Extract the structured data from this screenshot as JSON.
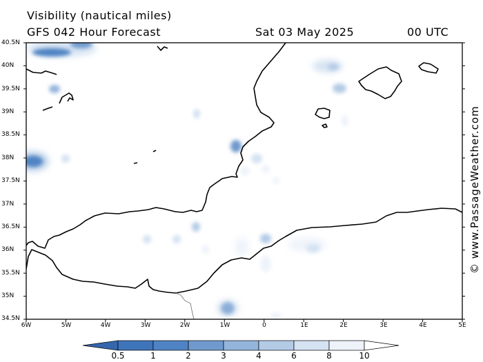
{
  "header": {
    "title": "Visibility (nautical miles)",
    "subtitle": "GFS 042 Hour Forecast",
    "date": "Sat 03 May 2025",
    "time": "00 UTC"
  },
  "watermark": "© www.PassageWeather.com",
  "lat_labels": [
    "40.5N",
    "40N",
    "39.5N",
    "39N",
    "38.5N",
    "38N",
    "37.5N",
    "37N",
    "36.5N",
    "36N",
    "35.5N",
    "35N",
    "34.5N"
  ],
  "lon_labels": [
    "6W",
    "5W",
    "4W",
    "3W",
    "2W",
    "1W",
    "0",
    "1E",
    "2E",
    "3E",
    "4E",
    "5E"
  ],
  "colorbar": {
    "labels": [
      "0.5",
      "1",
      "2",
      "3",
      "4",
      "6",
      "8",
      "10"
    ],
    "colors": [
      "#3e74b9",
      "#4f83c3",
      "#709ace",
      "#93b4db",
      "#b4cbe6",
      "#d4e2f2",
      "#eef3fa"
    ]
  }
}
